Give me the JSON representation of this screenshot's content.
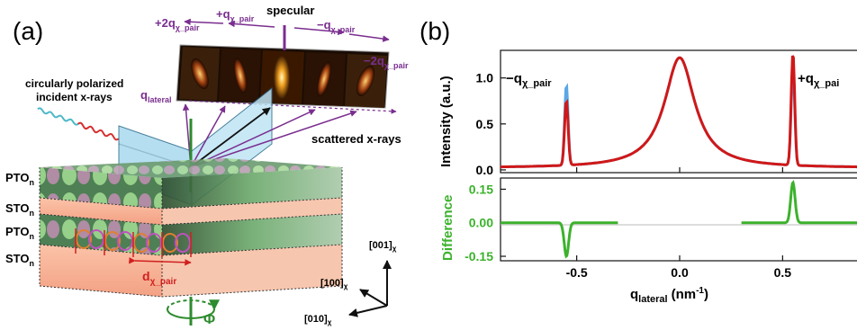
{
  "panel_a": {
    "label": "(a)",
    "specular": "specular",
    "plus_q": "+q",
    "minus_q": "−q",
    "plus2_q": "+2q",
    "minus2_q": "−2q",
    "chi_pair_sub": "χ_pair",
    "q_lateral": "q",
    "q_lateral_sub": "lateral",
    "incident_line1": "circularly polarized",
    "incident_line2": "incident x-rays",
    "scattered": "scattered x-rays",
    "pto": "PTO",
    "sto": "STO",
    "layer_sub": "n",
    "d_pair": "d",
    "d_pair_sub": "χ_pair",
    "axis_001": "[001]",
    "axis_100": "[100]",
    "axis_010": "[010]",
    "axis_sub": "χ",
    "phi": "Φ",
    "colors": {
      "purple": "#7a2e8f",
      "green": "#2e8b2e",
      "red": "#d02020",
      "substrate": "#f4b49a"
    }
  },
  "panel_b": {
    "label": "(b)",
    "peak_left_main": "−q",
    "peak_left_sub": "χ_pair",
    "peak_right_main": "+q",
    "peak_right_sub": "χ_pai",
    "xlabel_main": "q",
    "xlabel_sub": "lateral",
    "xlabel_unit": "(nm",
    "xlabel_exp": "-1",
    "xlabel_close": ")",
    "ylabel_top": "Intensity (a.u.)",
    "ylabel_bottom": "Difference",
    "colors": {
      "red": "#d01818",
      "blue": "#5aa7e6",
      "green": "#3cb22c"
    }
  },
  "chart_data": [
    {
      "type": "line",
      "title": "",
      "xlabel": "q_lateral (nm^-1)",
      "ylabel": "Intensity (a.u.)",
      "xlim": [
        -0.87,
        0.87
      ],
      "ylim": [
        -0.03,
        1.3
      ],
      "x_ticks": [
        -0.5,
        0.0,
        0.5
      ],
      "x_tick_labels": [
        "-0.5",
        "0.0",
        "0.5"
      ],
      "y_ticks": [
        0.0,
        0.5,
        1.0
      ],
      "y_tick_labels": [
        "0.0",
        "0.5",
        "1.0"
      ],
      "series": [
        {
          "name": "",
          "color": "#d01818",
          "baseline": 0.02,
          "center_peak_width": 0.09,
          "peaks": [
            {
              "x": -0.55,
              "height": 0.7
            },
            {
              "x": 0.55,
              "height": 1.22
            }
          ]
        },
        {
          "name": "",
          "color": "#5aa7e6",
          "baseline": 0.02,
          "center_peak_width": 0.09,
          "peaks": [
            {
              "x": -0.55,
              "height": 0.87
            },
            {
              "x": 0.55,
              "height": 1.05
            }
          ]
        }
      ]
    },
    {
      "type": "line",
      "title": "",
      "xlabel": "q_lateral (nm^-1)",
      "ylabel": "Difference",
      "xlim": [
        -0.87,
        0.87
      ],
      "ylim": [
        -0.17,
        0.2
      ],
      "y_ticks": [
        -0.15,
        0.0,
        0.15
      ],
      "y_tick_labels": [
        "-0.15",
        "0.00",
        "0.15"
      ],
      "series": [
        {
          "name": "",
          "color": "#3cb22c",
          "segments": [
            [
              -0.87,
              -0.3
            ],
            [
              0.3,
              0.87
            ]
          ],
          "peaks": [
            {
              "x": -0.55,
              "height": -0.15
            },
            {
              "x": 0.55,
              "height": 0.18
            }
          ]
        }
      ]
    }
  ]
}
